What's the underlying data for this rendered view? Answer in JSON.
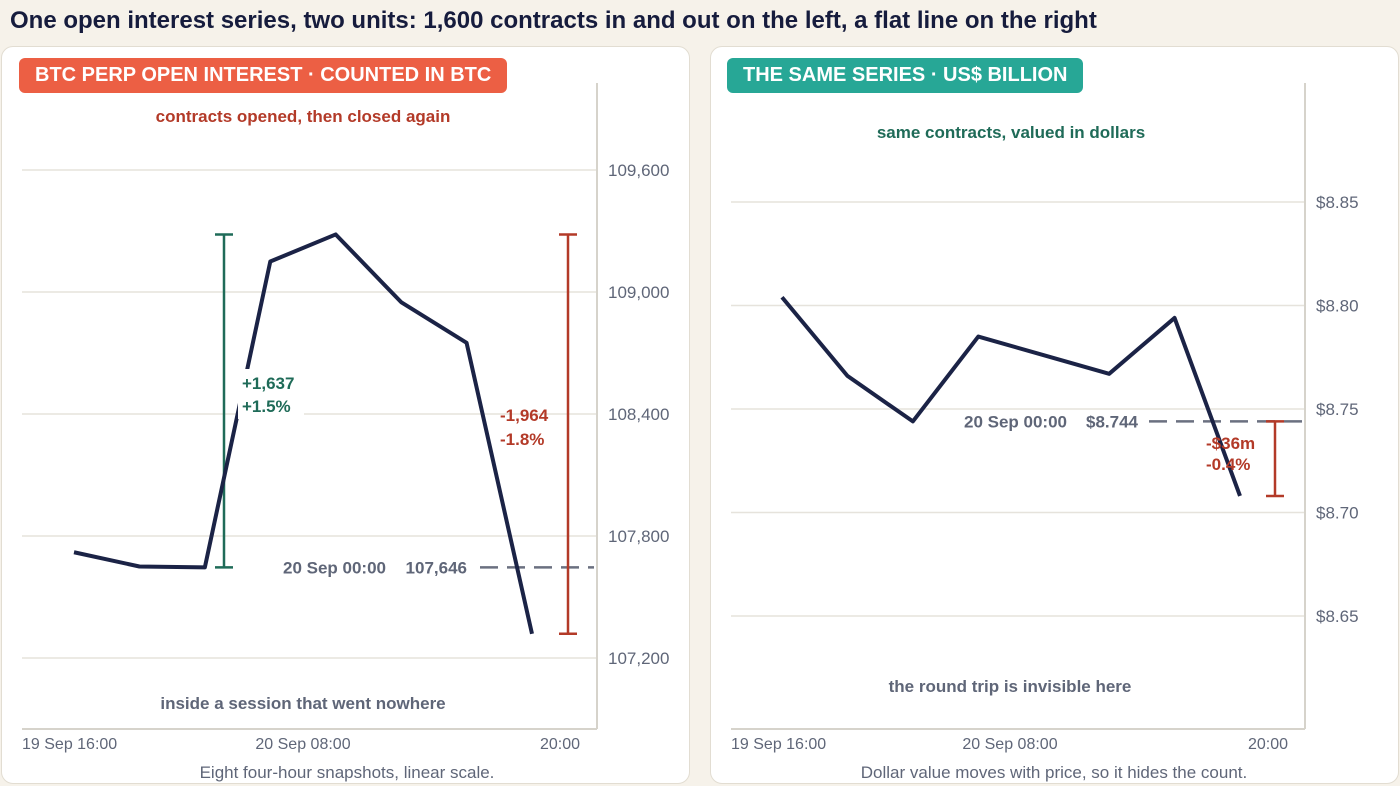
{
  "page": {
    "title": "One open interest series, two units: 1,600 contracts in and out on the left, a flat line on the right"
  },
  "colors": {
    "line": "#1b2346",
    "up": "#1f6b58",
    "down": "#b33a28",
    "muted": "#5f6678",
    "badge_left": "#ec5f44",
    "badge_right": "#27a796",
    "grid": "#e6e3dc",
    "axis": "#d6d3cb"
  },
  "left_panel": {
    "badge": "BTC PERP OPEN INTEREST · COUNTED IN BTC",
    "annotation_top": "contracts opened, then closed again",
    "annotation_bottom": "inside a session that went nowhere",
    "caption": "Eight four-hour snapshots, linear scale.",
    "rise": {
      "amount": "+1,637",
      "pct": "+1.5%"
    },
    "fall": {
      "amount": "-1,964",
      "pct": "-1.8%"
    },
    "reference": {
      "label": "20 Sep 00:00",
      "value_label": "107,646"
    }
  },
  "right_panel": {
    "badge": "THE SAME SERIES · US$ BILLION",
    "annotation_top": "same contracts, valued in dollars",
    "annotation_bottom": "the round trip is invisible here",
    "caption": "Dollar value moves with price, so it hides the count.",
    "fall": {
      "amount": "-$36m",
      "pct": "-0.4%"
    },
    "reference": {
      "label": "20 Sep 00:00",
      "value_label": "$8.744"
    }
  },
  "chart_data": [
    {
      "type": "line",
      "title": "BTC PERP OPEN INTEREST · COUNTED IN BTC",
      "unit": "BTC",
      "x": [
        "19 Sep 16:00",
        "19 Sep 20:00",
        "20 Sep 00:00",
        "20 Sep 04:00",
        "20 Sep 08:00",
        "20 Sep 12:00",
        "20 Sep 16:00",
        "20 Sep 20:00"
      ],
      "x_tick_labels": [
        "19 Sep 16:00",
        "20 Sep 08:00",
        "20:00"
      ],
      "series": [
        {
          "values": [
            107720,
            107650,
            107646,
            109150,
            109283,
            108950,
            108750,
            107319
          ]
        }
      ],
      "ylim": [
        107000,
        109900
      ],
      "y_ticks": [
        107200,
        107800,
        108400,
        109000,
        109600
      ],
      "y_tick_labels": [
        "107,200",
        "107,800",
        "108,400",
        "109,000",
        "109,600"
      ],
      "y_axis_side": "right",
      "grid": true,
      "reference_line": 107646,
      "brackets": [
        {
          "from": 107646,
          "to": 109283,
          "label": "+1,637 / +1.5%"
        },
        {
          "from": 109283,
          "to": 107319,
          "label": "-1,964 / -1.8%"
        }
      ]
    },
    {
      "type": "line",
      "title": "THE SAME SERIES · US$ BILLION",
      "unit": "US$ billion",
      "x": [
        "19 Sep 16:00",
        "19 Sep 20:00",
        "20 Sep 00:00",
        "20 Sep 04:00",
        "20 Sep 08:00",
        "20 Sep 12:00",
        "20 Sep 16:00",
        "20 Sep 20:00"
      ],
      "x_tick_labels": [
        "19 Sep 16:00",
        "20 Sep 08:00",
        "20:00"
      ],
      "series": [
        {
          "values": [
            8.804,
            8.766,
            8.744,
            8.785,
            8.776,
            8.767,
            8.794,
            8.708
          ]
        }
      ],
      "ylim": [
        8.6,
        8.9
      ],
      "y_ticks": [
        8.65,
        8.7,
        8.75,
        8.8,
        8.85
      ],
      "y_tick_labels": [
        "$8.65",
        "$8.70",
        "$8.75",
        "$8.80",
        "$8.85"
      ],
      "y_axis_side": "right",
      "grid": true,
      "reference_line": 8.744,
      "brackets": [
        {
          "from": 8.744,
          "to": 8.708,
          "label": "-$36m / -0.4%"
        }
      ]
    }
  ]
}
